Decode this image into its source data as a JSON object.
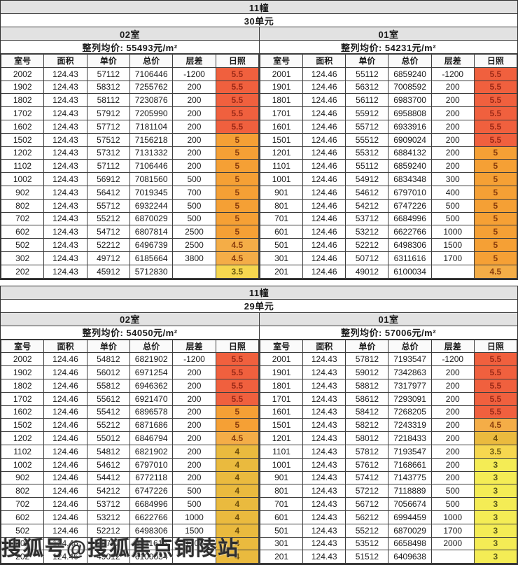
{
  "watermark": {
    "text": "搜狐号@搜狐焦点铜陵站"
  },
  "table_headers": [
    "室号",
    "面积",
    "单价",
    "总价",
    "层差",
    "日照"
  ],
  "sun_colors": {
    "5.5": {
      "bg": "#f0603e",
      "text": "#9c2a17"
    },
    "5": {
      "bg": "#f5a035",
      "text": "#8a3d0c"
    },
    "4.5": {
      "bg": "#f4ad47",
      "text": "#8a3d0c"
    },
    "4": {
      "bg": "#eaba3e",
      "text": "#6d4e0a"
    },
    "3.5": {
      "bg": "#f6d74f",
      "text": "#6d5b10"
    },
    "3": {
      "bg": "#f4ec55",
      "text": "#5c5a1d"
    }
  },
  "sections": [
    {
      "building": "11幢",
      "unit_group": "30单元",
      "units": [
        {
          "room_label": "02室",
          "avg_price": "整列均价: 55493元/m²",
          "rows": [
            [
              "2002",
              "124.43",
              "57112",
              "7106446",
              "-1200",
              "5.5"
            ],
            [
              "1902",
              "124.43",
              "58312",
              "7255762",
              "200",
              "5.5"
            ],
            [
              "1802",
              "124.43",
              "58112",
              "7230876",
              "200",
              "5.5"
            ],
            [
              "1702",
              "124.43",
              "57912",
              "7205990",
              "200",
              "5.5"
            ],
            [
              "1602",
              "124.43",
              "57712",
              "7181104",
              "200",
              "5.5"
            ],
            [
              "1502",
              "124.43",
              "57512",
              "7156218",
              "200",
              "5"
            ],
            [
              "1202",
              "124.43",
              "57312",
              "7131332",
              "200",
              "5"
            ],
            [
              "1102",
              "124.43",
              "57112",
              "7106446",
              "200",
              "5"
            ],
            [
              "1002",
              "124.43",
              "56912",
              "7081560",
              "500",
              "5"
            ],
            [
              "902",
              "124.43",
              "56412",
              "7019345",
              "700",
              "5"
            ],
            [
              "802",
              "124.43",
              "55712",
              "6932244",
              "500",
              "5"
            ],
            [
              "702",
              "124.43",
              "55212",
              "6870029",
              "500",
              "5"
            ],
            [
              "602",
              "124.43",
              "54712",
              "6807814",
              "2500",
              "5"
            ],
            [
              "502",
              "124.43",
              "52212",
              "6496739",
              "2500",
              "4.5"
            ],
            [
              "302",
              "124.43",
              "49712",
              "6185664",
              "3800",
              "4.5"
            ],
            [
              "202",
              "124.43",
              "45912",
              "5712830",
              "",
              "3.5"
            ]
          ]
        },
        {
          "room_label": "01室",
          "avg_price": "整列均价: 54231元/m²",
          "rows": [
            [
              "2001",
              "124.46",
              "55112",
              "6859240",
              "-1200",
              "5.5"
            ],
            [
              "1901",
              "124.46",
              "56312",
              "7008592",
              "200",
              "5.5"
            ],
            [
              "1801",
              "124.46",
              "56112",
              "6983700",
              "200",
              "5.5"
            ],
            [
              "1701",
              "124.46",
              "55912",
              "6958808",
              "200",
              "5.5"
            ],
            [
              "1601",
              "124.46",
              "55712",
              "6933916",
              "200",
              "5.5"
            ],
            [
              "1501",
              "124.46",
              "55512",
              "6909024",
              "200",
              "5.5"
            ],
            [
              "1201",
              "124.46",
              "55312",
              "6884132",
              "200",
              "5"
            ],
            [
              "1101",
              "124.46",
              "55112",
              "6859240",
              "200",
              "5"
            ],
            [
              "1001",
              "124.46",
              "54912",
              "6834348",
              "300",
              "5"
            ],
            [
              "901",
              "124.46",
              "54612",
              "6797010",
              "400",
              "5"
            ],
            [
              "801",
              "124.46",
              "54212",
              "6747226",
              "500",
              "5"
            ],
            [
              "701",
              "124.46",
              "53712",
              "6684996",
              "500",
              "5"
            ],
            [
              "601",
              "124.46",
              "53212",
              "6622766",
              "1000",
              "5"
            ],
            [
              "501",
              "124.46",
              "52212",
              "6498306",
              "1500",
              "5"
            ],
            [
              "301",
              "124.46",
              "50712",
              "6311616",
              "1700",
              "5"
            ],
            [
              "201",
              "124.46",
              "49012",
              "6100034",
              "",
              "4.5"
            ]
          ]
        }
      ]
    },
    {
      "building": "11幢",
      "unit_group": "29单元",
      "units": [
        {
          "room_label": "02室",
          "avg_price": "整列均价: 54050元/m²",
          "rows": [
            [
              "2002",
              "124.46",
              "54812",
              "6821902",
              "-1200",
              "5.5"
            ],
            [
              "1902",
              "124.46",
              "56012",
              "6971254",
              "200",
              "5.5"
            ],
            [
              "1802",
              "124.46",
              "55812",
              "6946362",
              "200",
              "5.5"
            ],
            [
              "1702",
              "124.46",
              "55612",
              "6921470",
              "200",
              "5.5"
            ],
            [
              "1602",
              "124.46",
              "55412",
              "6896578",
              "200",
              "5"
            ],
            [
              "1502",
              "124.46",
              "55212",
              "6871686",
              "200",
              "5"
            ],
            [
              "1202",
              "124.46",
              "55012",
              "6846794",
              "200",
              "4.5"
            ],
            [
              "1102",
              "124.46",
              "54812",
              "6821902",
              "200",
              "4"
            ],
            [
              "1002",
              "124.46",
              "54612",
              "6797010",
              "200",
              "4"
            ],
            [
              "902",
              "124.46",
              "54412",
              "6772118",
              "200",
              "4"
            ],
            [
              "802",
              "124.46",
              "54212",
              "6747226",
              "500",
              "4"
            ],
            [
              "702",
              "124.46",
              "53712",
              "6684996",
              "500",
              "4"
            ],
            [
              "602",
              "124.46",
              "53212",
              "6622766",
              "1000",
              "4"
            ],
            [
              "502",
              "124.46",
              "52212",
              "6498306",
              "1500",
              "4"
            ],
            [
              "302",
              "124.46",
              "50712",
              "6311616",
              "1700",
              "4"
            ],
            [
              "202",
              "124.46",
              "49012",
              "6100034",
              "",
              "4"
            ]
          ]
        },
        {
          "room_label": "01室",
          "avg_price": "整列均价: 57006元/m²",
          "rows": [
            [
              "2001",
              "124.43",
              "57812",
              "7193547",
              "-1200",
              "5.5"
            ],
            [
              "1901",
              "124.43",
              "59012",
              "7342863",
              "200",
              "5.5"
            ],
            [
              "1801",
              "124.43",
              "58812",
              "7317977",
              "200",
              "5.5"
            ],
            [
              "1701",
              "124.43",
              "58612",
              "7293091",
              "200",
              "5.5"
            ],
            [
              "1601",
              "124.43",
              "58412",
              "7268205",
              "200",
              "5.5"
            ],
            [
              "1501",
              "124.43",
              "58212",
              "7243319",
              "200",
              "4.5"
            ],
            [
              "1201",
              "124.43",
              "58012",
              "7218433",
              "200",
              "4"
            ],
            [
              "1101",
              "124.43",
              "57812",
              "7193547",
              "200",
              "3.5"
            ],
            [
              "1001",
              "124.43",
              "57612",
              "7168661",
              "200",
              "3"
            ],
            [
              "901",
              "124.43",
              "57412",
              "7143775",
              "200",
              "3"
            ],
            [
              "801",
              "124.43",
              "57212",
              "7118889",
              "500",
              "3"
            ],
            [
              "701",
              "124.43",
              "56712",
              "7056674",
              "500",
              "3"
            ],
            [
              "601",
              "124.43",
              "56212",
              "6994459",
              "1000",
              "3"
            ],
            [
              "501",
              "124.43",
              "55212",
              "6870029",
              "1700",
              "3"
            ],
            [
              "301",
              "124.43",
              "53512",
              "6658498",
              "2000",
              "3"
            ],
            [
              "201",
              "124.43",
              "51512",
              "6409638",
              "",
              "3"
            ]
          ]
        }
      ]
    }
  ]
}
